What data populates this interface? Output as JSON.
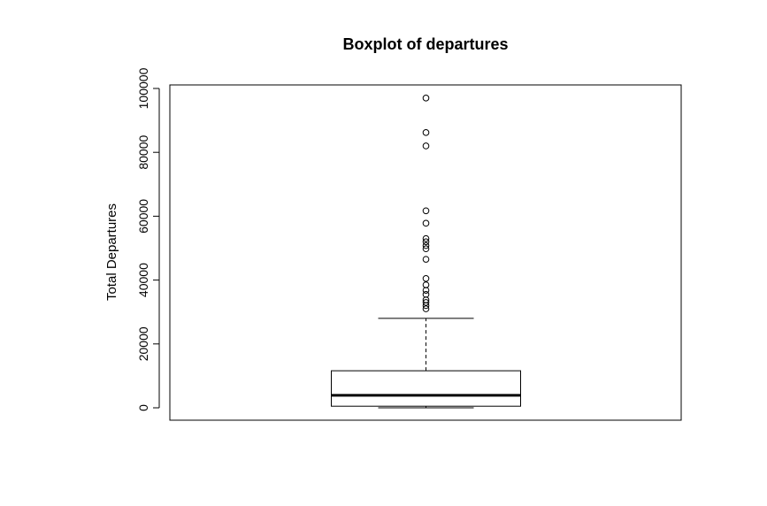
{
  "chart_data": {
    "type": "box",
    "title": "Boxplot of departures",
    "xlabel": "",
    "ylabel": "Total Departures",
    "ylim": [
      -3800,
      100000
    ],
    "yticks": [
      0,
      20000,
      40000,
      60000,
      80000,
      100000
    ],
    "ytick_labels": [
      "0",
      "20000",
      "40000",
      "60000",
      "80000",
      "100000"
    ],
    "grid": false,
    "box": {
      "whisker_low": 0,
      "q1": 500,
      "median": 3900,
      "q3": 11600,
      "whisker_high": 28000
    },
    "outliers": [
      31000,
      32000,
      33000,
      33800,
      35500,
      36800,
      38500,
      40500,
      46500,
      49800,
      50800,
      52000,
      53000,
      57800,
      61700,
      82000,
      86200,
      97000
    ]
  }
}
